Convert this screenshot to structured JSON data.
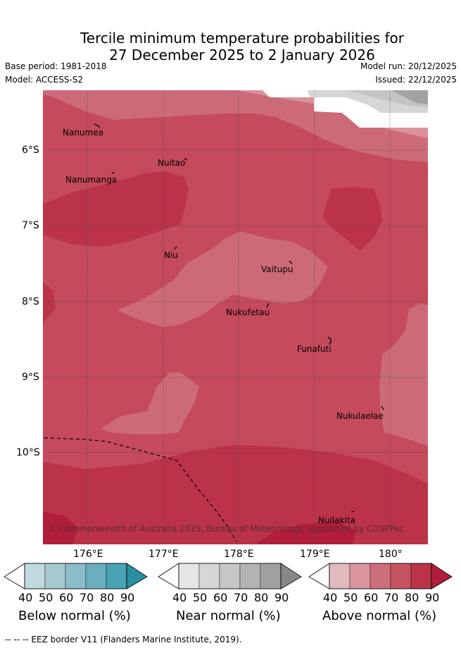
{
  "title": {
    "line1": "Tercile minimum temperature probabilities for",
    "line2": "27 December 2025 to 2 January 2026"
  },
  "meta": {
    "base_period": "Base period: 1981-2018",
    "model": "Model: ACCESS-S2",
    "model_run": "Model run: 20/12/2025",
    "issued": "Issued: 22/12/2025"
  },
  "axes": {
    "lat_labels": [
      "6°S",
      "7°S",
      "8°S",
      "9°S",
      "10°S"
    ],
    "lon_labels": [
      "176°E",
      "177°E",
      "178°E",
      "179°E",
      "180°"
    ]
  },
  "places": [
    "Nanumea",
    "Nuitao",
    "Nanumanga",
    "Niu",
    "Vaitupu",
    "Nukufetau",
    "Funafuti",
    "Nukulaelae",
    "Nuilakita"
  ],
  "copyright": "© Commonwealth of Australia 2025, Bureau of Meteorology, supported by COSPPac",
  "colorbars": [
    {
      "title": "Below normal (%)",
      "ticks": [
        "40",
        "50",
        "60",
        "70",
        "80",
        "90"
      ],
      "colors": [
        "#c0d9df",
        "#a6c9cf",
        "#8bbcc8",
        "#6aafbf",
        "#4aa3b3",
        "#2b8ea3"
      ]
    },
    {
      "title": "Near normal (%)",
      "ticks": [
        "40",
        "50",
        "60",
        "70",
        "80",
        "90"
      ],
      "colors": [
        "#e6e6e6",
        "#d6d6d6",
        "#c6c6c6",
        "#b4b4b4",
        "#a0a0a0",
        "#888888"
      ]
    },
    {
      "title": "Above normal (%)",
      "ticks": [
        "40",
        "50",
        "60",
        "70",
        "80",
        "90"
      ],
      "colors": [
        "#e1b9bf",
        "#d8959d",
        "#cd6f7b",
        "#c45260",
        "#bb3349",
        "#b01e3c"
      ]
    }
  ],
  "footer": "-- -- -- EEZ border V11 (Flanders Marine Institute, 2019)."
}
